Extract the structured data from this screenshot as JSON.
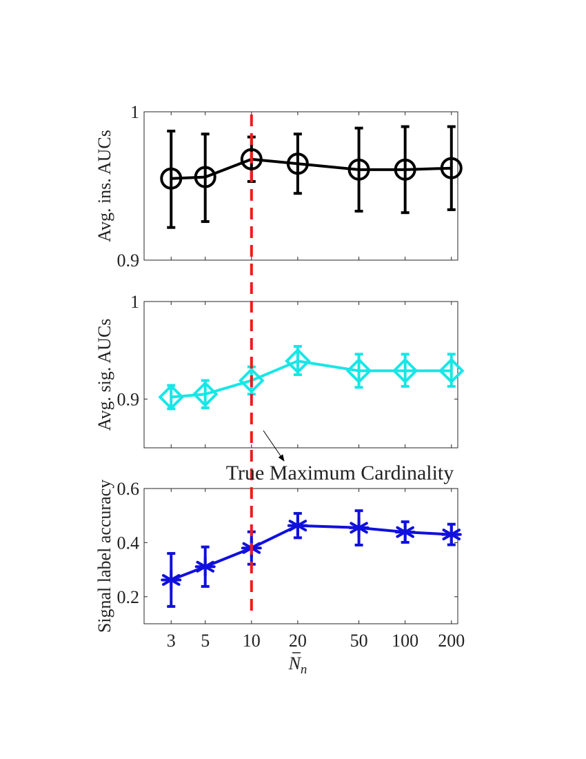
{
  "chart_data": {
    "type": "line",
    "x": [
      3,
      5,
      10,
      20,
      50,
      100,
      200
    ],
    "x_tick_labels": [
      "3",
      "5",
      "10",
      "20",
      "50",
      "100",
      "200"
    ],
    "x_scale": "log",
    "xlabel_base": "N",
    "xlabel_subscript": "n",
    "annotation": {
      "text": "True Maximum Cardinality",
      "line_x": 10,
      "line_color": "#ee1c1c",
      "arrow": true
    },
    "panels": [
      {
        "ylabel": "Avg. ins. AUCs",
        "ylim": [
          0.9,
          1.0
        ],
        "yticks": [
          "0.9",
          "1"
        ],
        "ytick_values": [
          0.9,
          1.0
        ],
        "marker": "circle",
        "color": "#000000",
        "values": [
          0.955,
          0.956,
          0.968,
          0.965,
          0.961,
          0.961,
          0.962
        ],
        "err_low": [
          0.922,
          0.926,
          0.953,
          0.945,
          0.933,
          0.932,
          0.934
        ],
        "err_high": [
          0.987,
          0.985,
          0.983,
          0.985,
          0.989,
          0.99,
          0.99
        ]
      },
      {
        "ylabel": "Avg. sig. AUCs",
        "ylim": [
          0.85,
          1.0
        ],
        "yticks": [
          "0.9",
          "1"
        ],
        "ytick_values": [
          0.9,
          1.0
        ],
        "marker": "diamond",
        "color": "#18e6e6",
        "values": [
          0.902,
          0.905,
          0.919,
          0.939,
          0.929,
          0.929,
          0.929
        ],
        "err_low": [
          0.89,
          0.891,
          0.905,
          0.925,
          0.912,
          0.913,
          0.913
        ],
        "err_high": [
          0.914,
          0.919,
          0.933,
          0.954,
          0.946,
          0.946,
          0.946
        ]
      },
      {
        "ylabel": "Signal label accuracy",
        "ylim": [
          0.1,
          0.6
        ],
        "yticks": [
          "0.2",
          "0.4",
          "0.6"
        ],
        "ytick_values": [
          0.2,
          0.4,
          0.6
        ],
        "marker": "asterisk",
        "color": "#1010dd",
        "values": [
          0.262,
          0.311,
          0.38,
          0.463,
          0.455,
          0.439,
          0.43
        ],
        "err_low": [
          0.164,
          0.238,
          0.32,
          0.418,
          0.391,
          0.401,
          0.392
        ],
        "err_high": [
          0.36,
          0.384,
          0.44,
          0.508,
          0.518,
          0.477,
          0.468
        ]
      }
    ]
  }
}
